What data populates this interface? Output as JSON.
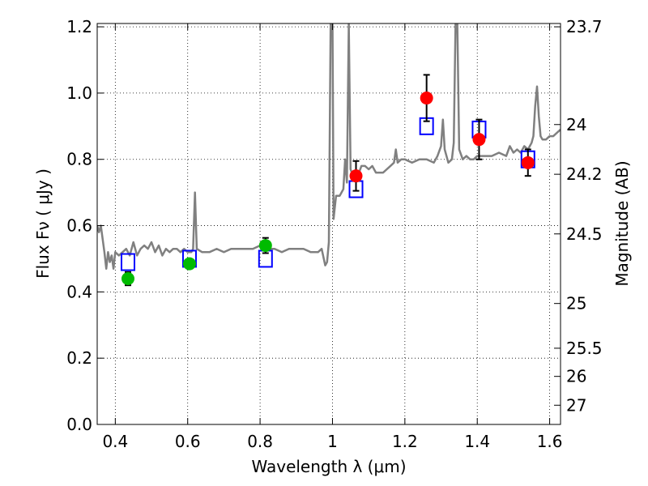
{
  "chart_data": {
    "type": "scatter",
    "xlabel": "Wavelength  λ (μm)",
    "ylabel": "Flux  Fν  ( μJy )",
    "y2label": "Magnitude (AB)",
    "xlim": [
      0.35,
      1.63
    ],
    "ylim": [
      0.0,
      1.21
    ],
    "grid": true,
    "grid_style": "dotted",
    "x_ticks": [
      0.4,
      0.6,
      0.8,
      1.0,
      1.2,
      1.4,
      1.6
    ],
    "x_tick_labels": [
      "0.4",
      "0.6",
      "0.8",
      "1",
      "1.2",
      "1.4",
      "1.6"
    ],
    "y_ticks": [
      0.0,
      0.2,
      0.4,
      0.6,
      0.8,
      1.0,
      1.2
    ],
    "y_tick_labels": [
      "0.0",
      "0.2",
      "0.4",
      "0.6",
      "0.8",
      "1.0",
      "1.2"
    ],
    "y2_ticks": [
      {
        "flux": 1.2,
        "label": "23.7"
      },
      {
        "flux": 0.905,
        "label": "24"
      },
      {
        "flux": 0.755,
        "label": "24.2"
      },
      {
        "flux": 0.575,
        "label": "24.5"
      },
      {
        "flux": 0.365,
        "label": "25"
      },
      {
        "flux": 0.23,
        "label": "25.5"
      },
      {
        "flux": 0.145,
        "label": "26"
      },
      {
        "flux": 0.058,
        "label": "27"
      }
    ],
    "colors": {
      "template": "#808080",
      "model": "#0000ff",
      "optical": "#00bb00",
      "nir": "#ff0000",
      "errorbar": "#000000"
    },
    "series": [
      {
        "kind": "line",
        "color_key": "template",
        "points": [
          [
            0.35,
            0.6
          ],
          [
            0.355,
            0.58
          ],
          [
            0.36,
            0.6
          ],
          [
            0.365,
            0.56
          ],
          [
            0.37,
            0.52
          ],
          [
            0.375,
            0.47
          ],
          [
            0.38,
            0.52
          ],
          [
            0.385,
            0.49
          ],
          [
            0.39,
            0.51
          ],
          [
            0.395,
            0.47
          ],
          [
            0.4,
            0.52
          ],
          [
            0.41,
            0.51
          ],
          [
            0.42,
            0.52
          ],
          [
            0.43,
            0.53
          ],
          [
            0.44,
            0.51
          ],
          [
            0.45,
            0.55
          ],
          [
            0.46,
            0.51
          ],
          [
            0.47,
            0.53
          ],
          [
            0.48,
            0.54
          ],
          [
            0.49,
            0.53
          ],
          [
            0.5,
            0.55
          ],
          [
            0.51,
            0.52
          ],
          [
            0.52,
            0.54
          ],
          [
            0.53,
            0.51
          ],
          [
            0.54,
            0.53
          ],
          [
            0.55,
            0.52
          ],
          [
            0.56,
            0.53
          ],
          [
            0.57,
            0.53
          ],
          [
            0.58,
            0.52
          ],
          [
            0.59,
            0.53
          ],
          [
            0.6,
            0.52
          ],
          [
            0.61,
            0.52
          ],
          [
            0.615,
            0.53
          ],
          [
            0.62,
            0.7
          ],
          [
            0.625,
            0.53
          ],
          [
            0.64,
            0.52
          ],
          [
            0.66,
            0.52
          ],
          [
            0.68,
            0.53
          ],
          [
            0.7,
            0.52
          ],
          [
            0.72,
            0.53
          ],
          [
            0.74,
            0.53
          ],
          [
            0.76,
            0.53
          ],
          [
            0.78,
            0.53
          ],
          [
            0.8,
            0.54
          ],
          [
            0.82,
            0.53
          ],
          [
            0.84,
            0.53
          ],
          [
            0.86,
            0.52
          ],
          [
            0.88,
            0.53
          ],
          [
            0.9,
            0.53
          ],
          [
            0.92,
            0.53
          ],
          [
            0.94,
            0.52
          ],
          [
            0.96,
            0.52
          ],
          [
            0.97,
            0.53
          ],
          [
            0.98,
            0.48
          ],
          [
            0.985,
            0.49
          ],
          [
            0.99,
            0.55
          ],
          [
            0.995,
            1.21
          ],
          [
            1.0,
            1.21
          ],
          [
            1.003,
            0.62
          ],
          [
            1.01,
            0.69
          ],
          [
            1.02,
            0.69
          ],
          [
            1.03,
            0.71
          ],
          [
            1.035,
            0.8
          ],
          [
            1.04,
            0.73
          ],
          [
            1.045,
            1.21
          ],
          [
            1.05,
            0.77
          ],
          [
            1.06,
            0.74
          ],
          [
            1.07,
            0.75
          ],
          [
            1.08,
            0.78
          ],
          [
            1.09,
            0.78
          ],
          [
            1.1,
            0.77
          ],
          [
            1.11,
            0.78
          ],
          [
            1.12,
            0.76
          ],
          [
            1.13,
            0.76
          ],
          [
            1.14,
            0.76
          ],
          [
            1.15,
            0.77
          ],
          [
            1.16,
            0.78
          ],
          [
            1.17,
            0.79
          ],
          [
            1.175,
            0.83
          ],
          [
            1.18,
            0.79
          ],
          [
            1.19,
            0.8
          ],
          [
            1.2,
            0.8
          ],
          [
            1.22,
            0.79
          ],
          [
            1.24,
            0.8
          ],
          [
            1.26,
            0.8
          ],
          [
            1.28,
            0.79
          ],
          [
            1.29,
            0.81
          ],
          [
            1.3,
            0.84
          ],
          [
            1.305,
            0.92
          ],
          [
            1.31,
            0.83
          ],
          [
            1.32,
            0.79
          ],
          [
            1.33,
            0.8
          ],
          [
            1.335,
            0.85
          ],
          [
            1.34,
            1.21
          ],
          [
            1.345,
            1.21
          ],
          [
            1.35,
            0.83
          ],
          [
            1.36,
            0.8
          ],
          [
            1.37,
            0.81
          ],
          [
            1.38,
            0.8
          ],
          [
            1.39,
            0.8
          ],
          [
            1.4,
            0.81
          ],
          [
            1.42,
            0.81
          ],
          [
            1.44,
            0.81
          ],
          [
            1.46,
            0.82
          ],
          [
            1.48,
            0.81
          ],
          [
            1.49,
            0.84
          ],
          [
            1.5,
            0.82
          ],
          [
            1.51,
            0.83
          ],
          [
            1.52,
            0.82
          ],
          [
            1.53,
            0.84
          ],
          [
            1.54,
            0.83
          ],
          [
            1.55,
            0.85
          ],
          [
            1.555,
            0.87
          ],
          [
            1.56,
            0.96
          ],
          [
            1.565,
            1.02
          ],
          [
            1.57,
            0.93
          ],
          [
            1.575,
            0.87
          ],
          [
            1.58,
            0.86
          ],
          [
            1.59,
            0.86
          ],
          [
            1.6,
            0.87
          ],
          [
            1.61,
            0.87
          ],
          [
            1.62,
            0.88
          ],
          [
            1.63,
            0.89
          ]
        ]
      },
      {
        "kind": "marker",
        "marker": "open-square",
        "color_key": "model",
        "points": [
          [
            0.435,
            0.49
          ],
          [
            0.605,
            0.5
          ],
          [
            0.815,
            0.5
          ],
          [
            1.065,
            0.71
          ],
          [
            1.26,
            0.9
          ],
          [
            1.405,
            0.89
          ],
          [
            1.54,
            0.8
          ]
        ]
      },
      {
        "kind": "marker",
        "marker": "filled-circle",
        "color_key": "optical",
        "points": [
          {
            "x": 0.435,
            "y": 0.44,
            "err": 0.02
          },
          {
            "x": 0.605,
            "y": 0.485,
            "err": 0.013
          },
          {
            "x": 0.815,
            "y": 0.54,
            "err": 0.023
          }
        ]
      },
      {
        "kind": "marker",
        "marker": "filled-circle",
        "color_key": "nir",
        "points": [
          {
            "x": 1.065,
            "y": 0.75,
            "err": 0.045
          },
          {
            "x": 1.26,
            "y": 0.985,
            "err": 0.07
          },
          {
            "x": 1.405,
            "y": 0.86,
            "err": 0.06
          },
          {
            "x": 1.54,
            "y": 0.79,
            "err": 0.04
          }
        ]
      }
    ]
  }
}
